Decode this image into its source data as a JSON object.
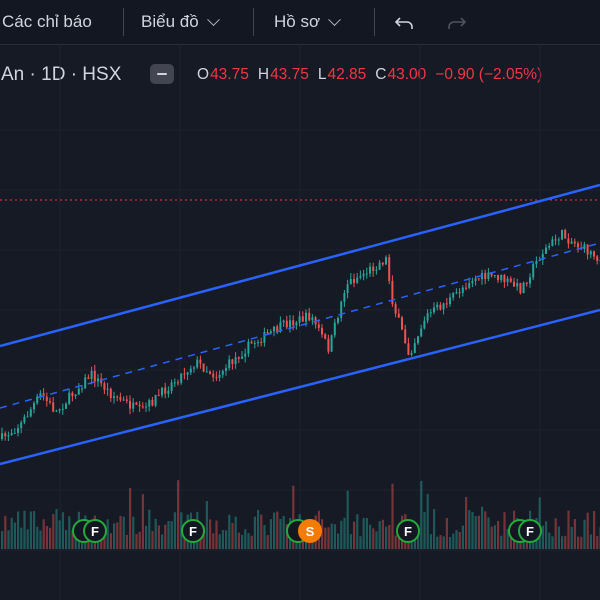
{
  "toolbar": {
    "indicators_label": "Các chỉ báo",
    "chart_label": "Biểu đồ",
    "profile_label": "Hồ sơ"
  },
  "legend": {
    "symbol_text": "An · 1D · HSX",
    "open_key": "O",
    "open_value": "43.75",
    "high_key": "H",
    "high_value": "43.75",
    "low_key": "L",
    "low_value": "42.85",
    "close_key": "C",
    "close_value": "43.00",
    "change": "−0.90 (−2.05%)"
  },
  "colors": {
    "background": "#161a25",
    "up": "#26a69a",
    "down": "#ef5350",
    "channel": "#2962ff",
    "last_price_line": "#f23645"
  },
  "markers": [
    "F",
    "F",
    "F",
    "S",
    "F",
    "F",
    "F"
  ],
  "chart_data": {
    "type": "candlestick",
    "series": [
      {
        "name": "",
        "kind": "candles"
      },
      {
        "name": "",
        "kind": "volume"
      }
    ],
    "channel": {
      "upper": "parallel trend line",
      "middle": "dashed median",
      "lower": "parallel trend line"
    },
    "events": [
      "F",
      "F",
      "F",
      "S",
      "F",
      "F",
      "F"
    ]
  }
}
